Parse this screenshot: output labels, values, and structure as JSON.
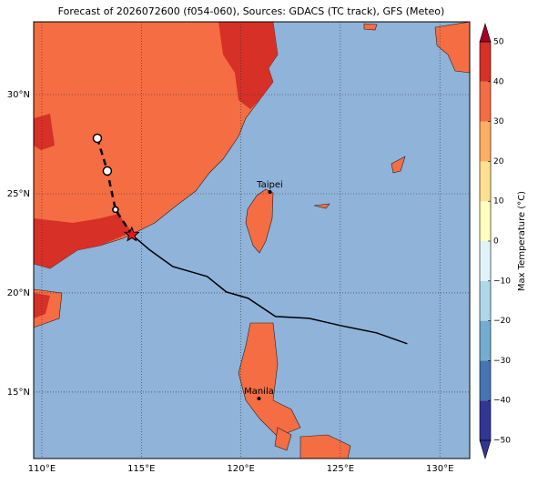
{
  "title": "Forecast of 2026072600 (f054-060), Sources: GDACS (TC track), GFS (Meteo)",
  "map": {
    "xlim": [
      109.59,
      131.5
    ],
    "ylim": [
      11.65,
      33.67
    ],
    "xticks": [
      {
        "value": 110,
        "label": "110°E"
      },
      {
        "value": 115,
        "label": "115°E"
      },
      {
        "value": 120,
        "label": "120°E"
      },
      {
        "value": 125,
        "label": "125°E"
      },
      {
        "value": 130,
        "label": "130°E"
      }
    ],
    "yticks": [
      {
        "value": 15,
        "label": "15°N"
      },
      {
        "value": 20,
        "label": "20°N"
      },
      {
        "value": 25,
        "label": "25°N"
      },
      {
        "value": 30,
        "label": "30°N"
      }
    ],
    "grid": true,
    "ocean_color": "#8fb3d9"
  },
  "cities": [
    {
      "name": "Taipei",
      "lon": 121.46,
      "lat": 25.09
    },
    {
      "name": "Manila",
      "lon": 120.91,
      "lat": 14.68
    }
  ],
  "track": {
    "observed": {
      "lon": [
        114.52,
        115.43,
        116.58,
        118.31,
        119.27,
        120.37,
        121.74,
        123.43,
        125.03,
        126.81,
        128.36
      ],
      "lat": [
        22.94,
        22.16,
        21.33,
        20.83,
        20.05,
        19.73,
        18.81,
        18.72,
        18.35,
        17.99,
        17.44
      ]
    },
    "forecast": {
      "lon": [
        112.79,
        113.29,
        113.7,
        114.52
      ],
      "lat": [
        27.8,
        26.15,
        24.2,
        22.94
      ]
    },
    "current": {
      "lon": 114.52,
      "lat": 22.94
    }
  },
  "colorbar": {
    "label": "Max Temperature (°C)",
    "ticks": [
      {
        "value": -50,
        "label": "−50"
      },
      {
        "value": -40,
        "label": "−40"
      },
      {
        "value": -30,
        "label": "−30"
      },
      {
        "value": -20,
        "label": "−20"
      },
      {
        "value": -10,
        "label": "−10"
      },
      0,
      10,
      20,
      30,
      40,
      50
    ],
    "colors": [
      "#313695",
      "#4575b4",
      "#74add1",
      "#abd9e9",
      "#e0f3f8",
      "#ffffbf",
      "#fee090",
      "#fdae61",
      "#f46d43",
      "#d73027",
      "#a50026"
    ]
  }
}
